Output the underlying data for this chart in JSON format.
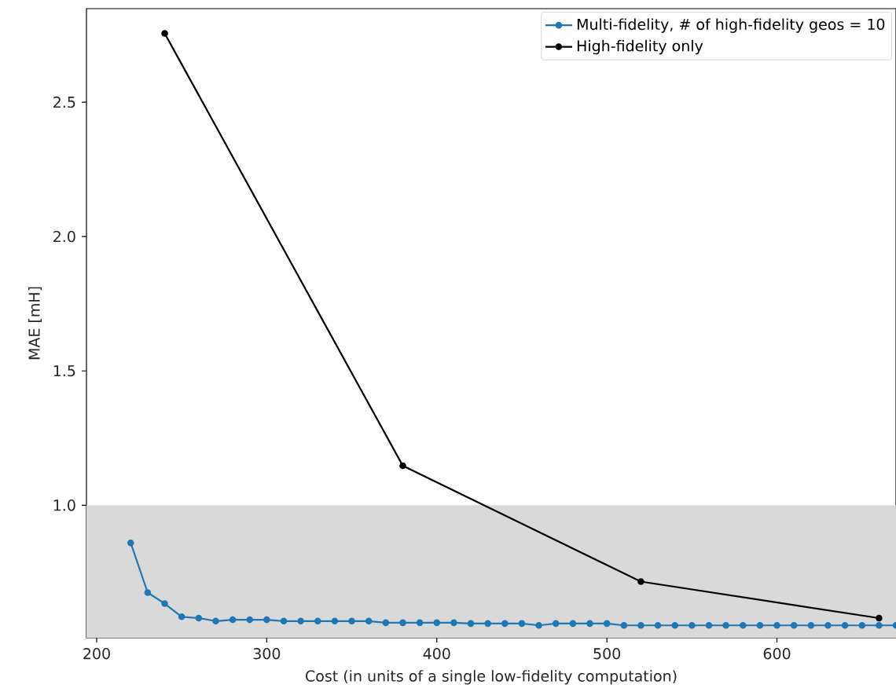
{
  "chart_data": {
    "type": "line",
    "xlabel": "Cost (in units of a single low-fidelity computation)",
    "ylabel": "MAE [mH]",
    "xlim": [
      194,
      670
    ],
    "ylim": [
      0.507,
      2.848
    ],
    "xticks": [
      200,
      300,
      400,
      500,
      600
    ],
    "yticks": [
      {
        "value": 1.0,
        "label": "1.0"
      },
      1.5,
      {
        "value": 2.0,
        "label": "2.0"
      },
      2.5
    ],
    "marker": "circle",
    "line_style": "solid",
    "legend": "top right",
    "grid": false,
    "bands": [
      {
        "axis": "y",
        "from": 0.507,
        "to": 1.0,
        "color": "#d9d9d9"
      }
    ],
    "series": [
      {
        "name": "Multi-fidelity, # of high-fidelity geos = 10",
        "color": "#1f77b4",
        "x": [
          220,
          230,
          240,
          250,
          260,
          270,
          280,
          290,
          300,
          310,
          320,
          330,
          340,
          350,
          360,
          370,
          380,
          390,
          400,
          410,
          420,
          430,
          440,
          450,
          460,
          470,
          480,
          490,
          500,
          510,
          520,
          530,
          540,
          550,
          560,
          570,
          580,
          590,
          600,
          610,
          620,
          630,
          640,
          650,
          660,
          670
        ],
        "values": [
          0.86,
          0.675,
          0.634,
          0.585,
          0.58,
          0.569,
          0.574,
          0.574,
          0.574,
          0.569,
          0.569,
          0.569,
          0.569,
          0.569,
          0.569,
          0.563,
          0.563,
          0.563,
          0.563,
          0.563,
          0.56,
          0.56,
          0.56,
          0.56,
          0.553,
          0.56,
          0.56,
          0.56,
          0.56,
          0.553,
          0.553,
          0.553,
          0.553,
          0.553,
          0.553,
          0.553,
          0.553,
          0.553,
          0.553,
          0.553,
          0.553,
          0.553,
          0.553,
          0.553,
          0.553,
          0.553
        ]
      },
      {
        "name": "High-fidelity only",
        "color": "#000000",
        "x": [
          240,
          380,
          520,
          660
        ],
        "values": [
          2.756,
          1.147,
          0.716,
          0.58
        ]
      }
    ]
  }
}
